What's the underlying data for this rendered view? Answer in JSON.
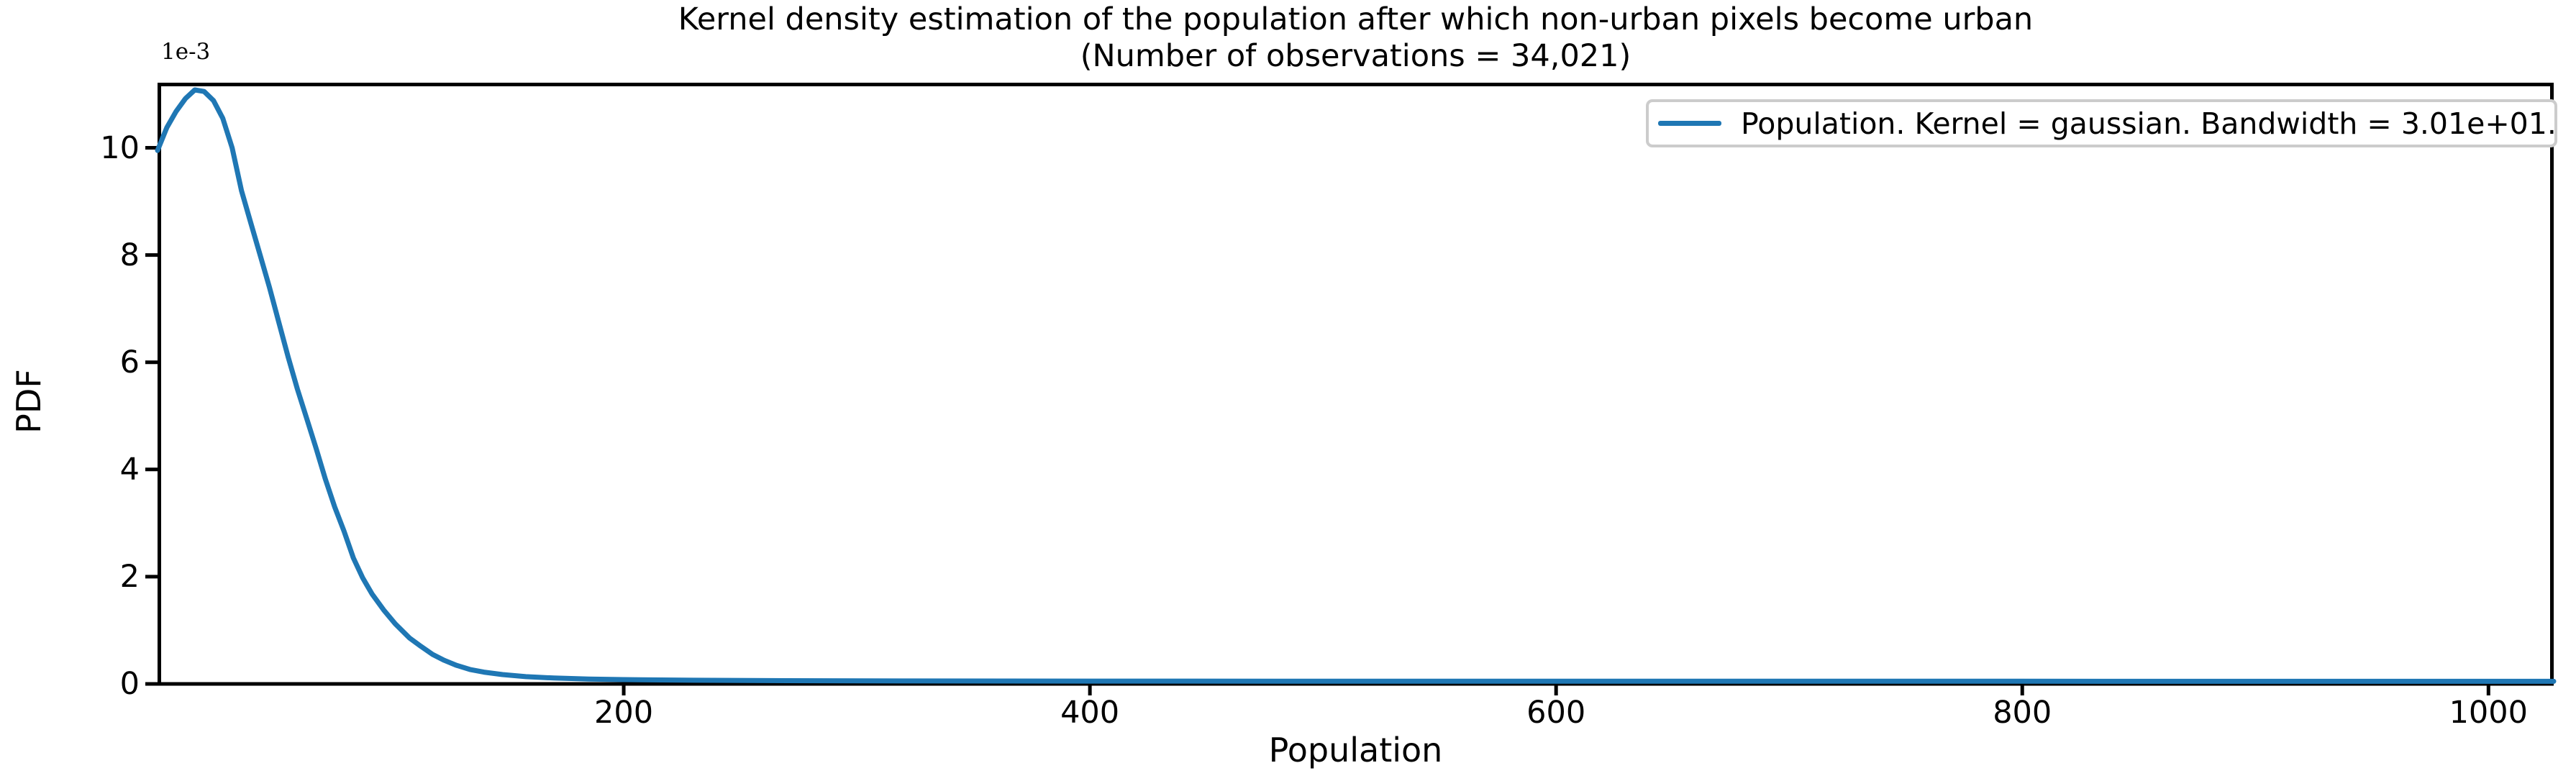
{
  "figure": {
    "title_line1": "Kernel density estimation of the population after which non-urban pixels become urban",
    "title_line2": "(Number of observations = 34,021)"
  },
  "axes": {
    "xlabel": "Population",
    "ylabel": "PDF",
    "y_offset_text": "1e-3"
  },
  "legend": {
    "label": "Population. Kernel = gaussian. Bandwidth = 3.01e+01."
  },
  "colors": {
    "line": "#1f77b4",
    "axis": "#000000",
    "legend_border": "#cccccc",
    "text": "#000000",
    "background": "#ffffff"
  },
  "chart_data": {
    "type": "line",
    "title": "Kernel density estimation of the population after which non-urban pixels become urban (Number of observations = 34,021)",
    "xlabel": "Population",
    "ylabel": "PDF",
    "y_units_note": "pdf values listed in units of 1e-3 (axis offset label '1e-3')",
    "xlim": [
      0,
      1028
    ],
    "ylim_1e3": [
      0,
      11.2
    ],
    "x_ticks": [
      200,
      400,
      600,
      800,
      1000
    ],
    "y_ticks_1e3": [
      0,
      2,
      4,
      6,
      8,
      10
    ],
    "grid": false,
    "legend_position": "upper right",
    "series": [
      {
        "name": "Population. Kernel = gaussian. Bandwidth = 3.01e+01.",
        "color": "#1f77b4",
        "points_population_pdf1e3": [
          [
            0,
            9.95
          ],
          [
            4,
            10.38
          ],
          [
            8,
            10.68
          ],
          [
            12,
            10.92
          ],
          [
            16,
            11.08
          ],
          [
            20,
            11.05
          ],
          [
            24,
            10.88
          ],
          [
            28,
            10.55
          ],
          [
            32,
            10.0
          ],
          [
            36,
            9.2
          ],
          [
            40,
            8.6
          ],
          [
            44,
            8.0
          ],
          [
            48,
            7.4
          ],
          [
            52,
            6.75
          ],
          [
            56,
            6.1
          ],
          [
            60,
            5.5
          ],
          [
            64,
            4.95
          ],
          [
            68,
            4.4
          ],
          [
            72,
            3.82
          ],
          [
            76,
            3.3
          ],
          [
            80,
            2.85
          ],
          [
            84,
            2.35
          ],
          [
            88,
            1.98
          ],
          [
            92,
            1.68
          ],
          [
            97,
            1.38
          ],
          [
            102,
            1.12
          ],
          [
            108,
            0.86
          ],
          [
            113,
            0.7
          ],
          [
            118,
            0.55
          ],
          [
            123,
            0.44
          ],
          [
            128,
            0.35
          ],
          [
            134,
            0.27
          ],
          [
            140,
            0.22
          ],
          [
            148,
            0.175
          ],
          [
            158,
            0.135
          ],
          [
            170,
            0.11
          ],
          [
            185,
            0.09
          ],
          [
            200,
            0.08
          ],
          [
            230,
            0.068
          ],
          [
            270,
            0.06
          ],
          [
            320,
            0.055
          ],
          [
            400,
            0.052
          ],
          [
            520,
            0.05
          ],
          [
            660,
            0.049
          ],
          [
            800,
            0.049
          ],
          [
            920,
            0.048
          ],
          [
            1028,
            0.048
          ]
        ]
      }
    ]
  }
}
